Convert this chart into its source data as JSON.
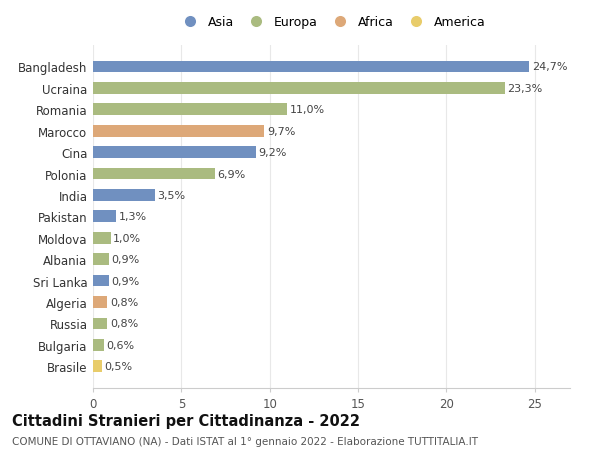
{
  "countries": [
    "Bangladesh",
    "Ucraina",
    "Romania",
    "Marocco",
    "Cina",
    "Polonia",
    "India",
    "Pakistan",
    "Moldova",
    "Albania",
    "Sri Lanka",
    "Algeria",
    "Russia",
    "Bulgaria",
    "Brasile"
  ],
  "values": [
    24.7,
    23.3,
    11.0,
    9.7,
    9.2,
    6.9,
    3.5,
    1.3,
    1.0,
    0.9,
    0.9,
    0.8,
    0.8,
    0.6,
    0.5
  ],
  "labels": [
    "24,7%",
    "23,3%",
    "11,0%",
    "9,7%",
    "9,2%",
    "6,9%",
    "3,5%",
    "1,3%",
    "1,0%",
    "0,9%",
    "0,9%",
    "0,8%",
    "0,8%",
    "0,6%",
    "0,5%"
  ],
  "continents": [
    "Asia",
    "Europa",
    "Europa",
    "Africa",
    "Asia",
    "Europa",
    "Asia",
    "Asia",
    "Europa",
    "Europa",
    "Asia",
    "Africa",
    "Europa",
    "Europa",
    "America"
  ],
  "colors": {
    "Asia": "#7090c0",
    "Europa": "#aabb80",
    "Africa": "#dda878",
    "America": "#e8cc6a"
  },
  "legend_order": [
    "Asia",
    "Europa",
    "Africa",
    "America"
  ],
  "title": "Cittadini Stranieri per Cittadinanza - 2022",
  "subtitle": "COMUNE DI OTTAVIANO (NA) - Dati ISTAT al 1° gennaio 2022 - Elaborazione TUTTITALIA.IT",
  "xlim": [
    0,
    27
  ],
  "xticks": [
    0,
    5,
    10,
    15,
    20,
    25
  ],
  "background_color": "#ffffff",
  "grid_color": "#e8e8e8",
  "title_fontsize": 10.5,
  "subtitle_fontsize": 7.5,
  "label_fontsize": 8,
  "tick_fontsize": 8.5,
  "bar_height": 0.55
}
